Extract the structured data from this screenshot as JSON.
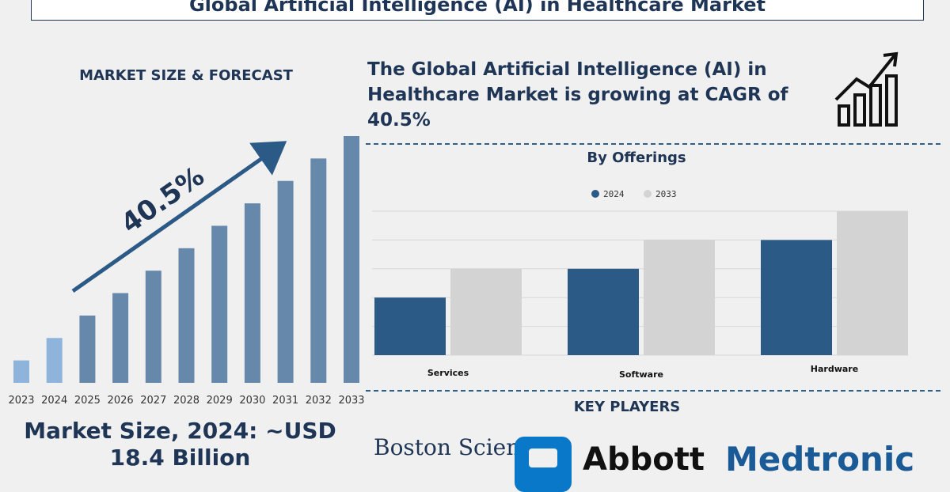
{
  "page_title": "Global Artificial Intelligence (AI) in Healthcare Market",
  "market_forecast": {
    "heading": "MARKET SIZE & FORECAST",
    "cagr_label": "40.5%",
    "market_size_text": "Market Size, 2024: ~USD 18.4 Billion"
  },
  "cagr_statement": "The Global Artificial Intelligence (AI) in Healthcare Market is growing at CAGR of 40.5%",
  "offerings_heading": "By Offerings",
  "key_players": {
    "heading": "KEY PLAYERS",
    "logos": [
      "Boston Scientific",
      "Abbott",
      "Medtronic"
    ]
  },
  "icons": [
    "growth-chart-icon",
    "abbott-logo-icon"
  ],
  "colors": {
    "navy": "#1f3555",
    "bar_historic": "#8fb4dc",
    "bar_forecast": "#6688aa",
    "series_2024": "#2b5a87",
    "series_2033": "#d3d3d3"
  },
  "chart_data": [
    {
      "type": "bar",
      "title": "",
      "categories": [
        "2023",
        "2024",
        "2025",
        "2026",
        "2027",
        "2028",
        "2029",
        "2030",
        "2031",
        "2032",
        "2033"
      ],
      "values": [
        1,
        2,
        3,
        4,
        5,
        6,
        7,
        8,
        9,
        10,
        11
      ],
      "xlabel": "",
      "ylabel": "",
      "ylim": [
        0,
        11
      ],
      "grid": false,
      "annotation": "40.5%"
    },
    {
      "type": "bar",
      "title": "By Offerings",
      "categories": [
        "Services",
        "Software",
        "Hardware"
      ],
      "series": [
        {
          "name": "2024",
          "values": [
            2,
            3,
            4
          ]
        },
        {
          "name": "2033",
          "values": [
            3,
            4,
            5
          ]
        }
      ],
      "ylim": [
        0,
        5
      ],
      "grid": true,
      "legend": "top-center"
    }
  ]
}
